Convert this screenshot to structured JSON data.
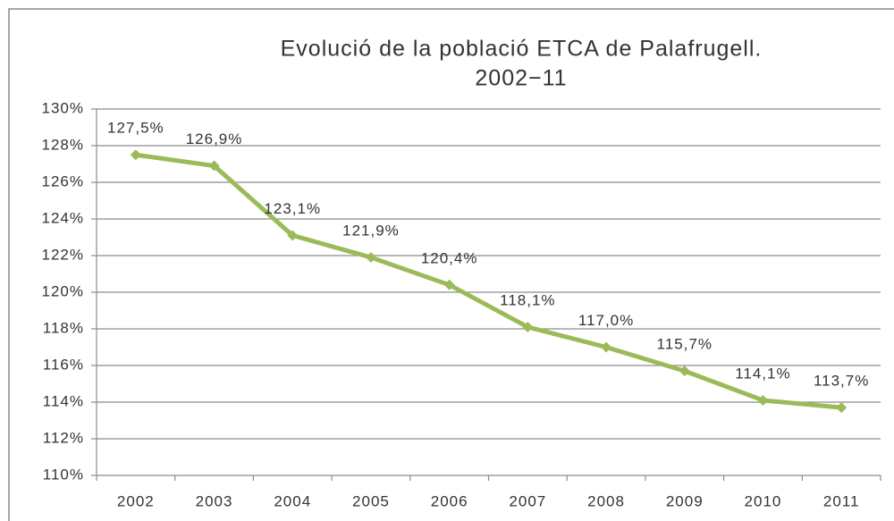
{
  "chart_data": {
    "type": "line",
    "title": [
      "Evolució de la població ETCA de Palafrugell.",
      "2002−11"
    ],
    "categories": [
      "2002",
      "2003",
      "2004",
      "2005",
      "2006",
      "2007",
      "2008",
      "2009",
      "2010",
      "2011"
    ],
    "values": [
      127.5,
      126.9,
      123.1,
      121.9,
      120.4,
      118.1,
      117.0,
      115.7,
      114.1,
      113.7
    ],
    "value_labels": [
      "127,5%",
      "126,9%",
      "123,1%",
      "121,9%",
      "120,4%",
      "118,1%",
      "117,0%",
      "115,7%",
      "114,1%",
      "113,7%"
    ],
    "color": "#9bbb59",
    "ylim": [
      110,
      130
    ],
    "yticks": [
      {
        "value": 110,
        "label": "110%"
      },
      {
        "value": 112,
        "label": "112%"
      },
      {
        "value": 114,
        "label": "114%"
      },
      {
        "value": 116,
        "label": "116%"
      },
      {
        "value": 118,
        "label": "118%"
      },
      {
        "value": 120,
        "label": "120%"
      },
      {
        "value": 122,
        "label": "122%"
      },
      {
        "value": 124,
        "label": "124%"
      },
      {
        "value": 126,
        "label": "126%"
      },
      {
        "value": 128,
        "label": "128%"
      },
      {
        "value": 130,
        "label": "130%"
      }
    ],
    "grid": true
  }
}
